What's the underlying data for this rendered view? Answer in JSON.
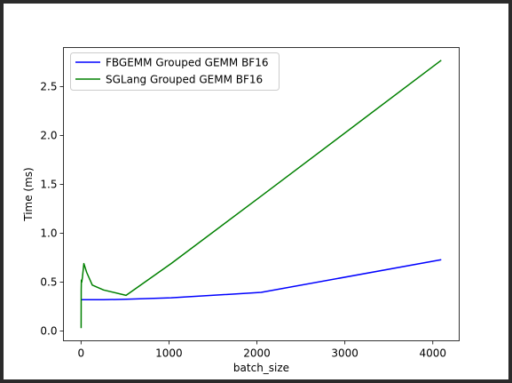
{
  "chart_data": {
    "type": "line",
    "title": "",
    "xlabel": "batch_size",
    "ylabel": "Time (ms)",
    "xlim": [
      -200,
      4300
    ],
    "ylim": [
      -0.1,
      2.9
    ],
    "xticks": [
      0,
      1000,
      2000,
      3000,
      4000
    ],
    "yticks": [
      0.0,
      0.5,
      1.0,
      1.5,
      2.0,
      2.5
    ],
    "xtick_labels": [
      "0",
      "1000",
      "2000",
      "3000",
      "4000"
    ],
    "ytick_labels": [
      "0.0",
      "0.5",
      "1.0",
      "1.5",
      "2.0",
      "2.5"
    ],
    "grid": false,
    "legend_position": "upper left",
    "series": [
      {
        "name": "FBGEMM Grouped GEMM BF16",
        "color": "#0000ff",
        "x": [
          1,
          2,
          4,
          8,
          16,
          32,
          64,
          128,
          256,
          512,
          1024,
          2048,
          4096
        ],
        "y": [
          0.32,
          0.32,
          0.32,
          0.32,
          0.32,
          0.32,
          0.32,
          0.32,
          0.32,
          0.325,
          0.34,
          0.395,
          0.73
        ]
      },
      {
        "name": "SGLang Grouped GEMM BF16",
        "color": "#008000",
        "x": [
          1,
          2,
          4,
          8,
          16,
          32,
          64,
          128,
          256,
          512,
          1024,
          2048,
          4096
        ],
        "y": [
          0.03,
          0.42,
          0.52,
          0.5,
          0.55,
          0.69,
          0.6,
          0.47,
          0.42,
          0.365,
          0.69,
          1.38,
          2.77
        ]
      }
    ]
  }
}
